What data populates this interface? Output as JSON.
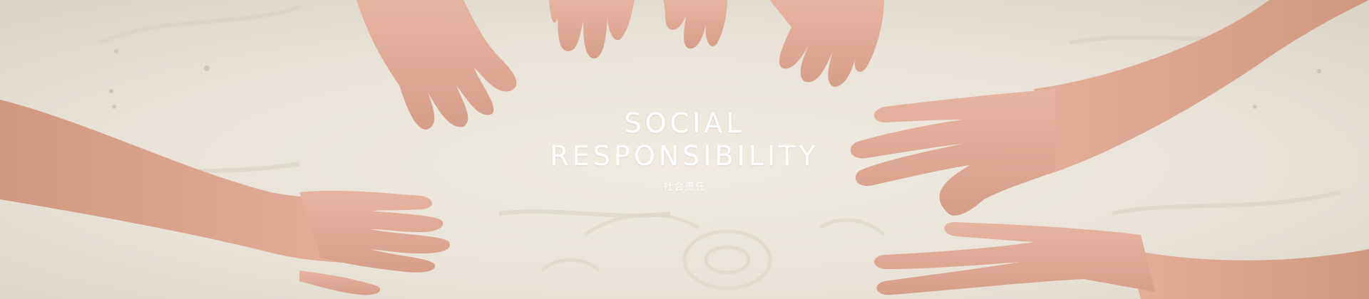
{
  "banner": {
    "title_line_1": "SOCIAL",
    "title_line_2": "RESPONSIBILITY",
    "subtitle": "社会责任",
    "image_icon": "hands-in-sand-photo-icon"
  },
  "colors": {
    "sand": "#e7e0d5",
    "sand_shadow": "#d4ccbe",
    "skin": "#d9a08a",
    "skin_dark": "#c78872",
    "text": "#ffffff"
  }
}
